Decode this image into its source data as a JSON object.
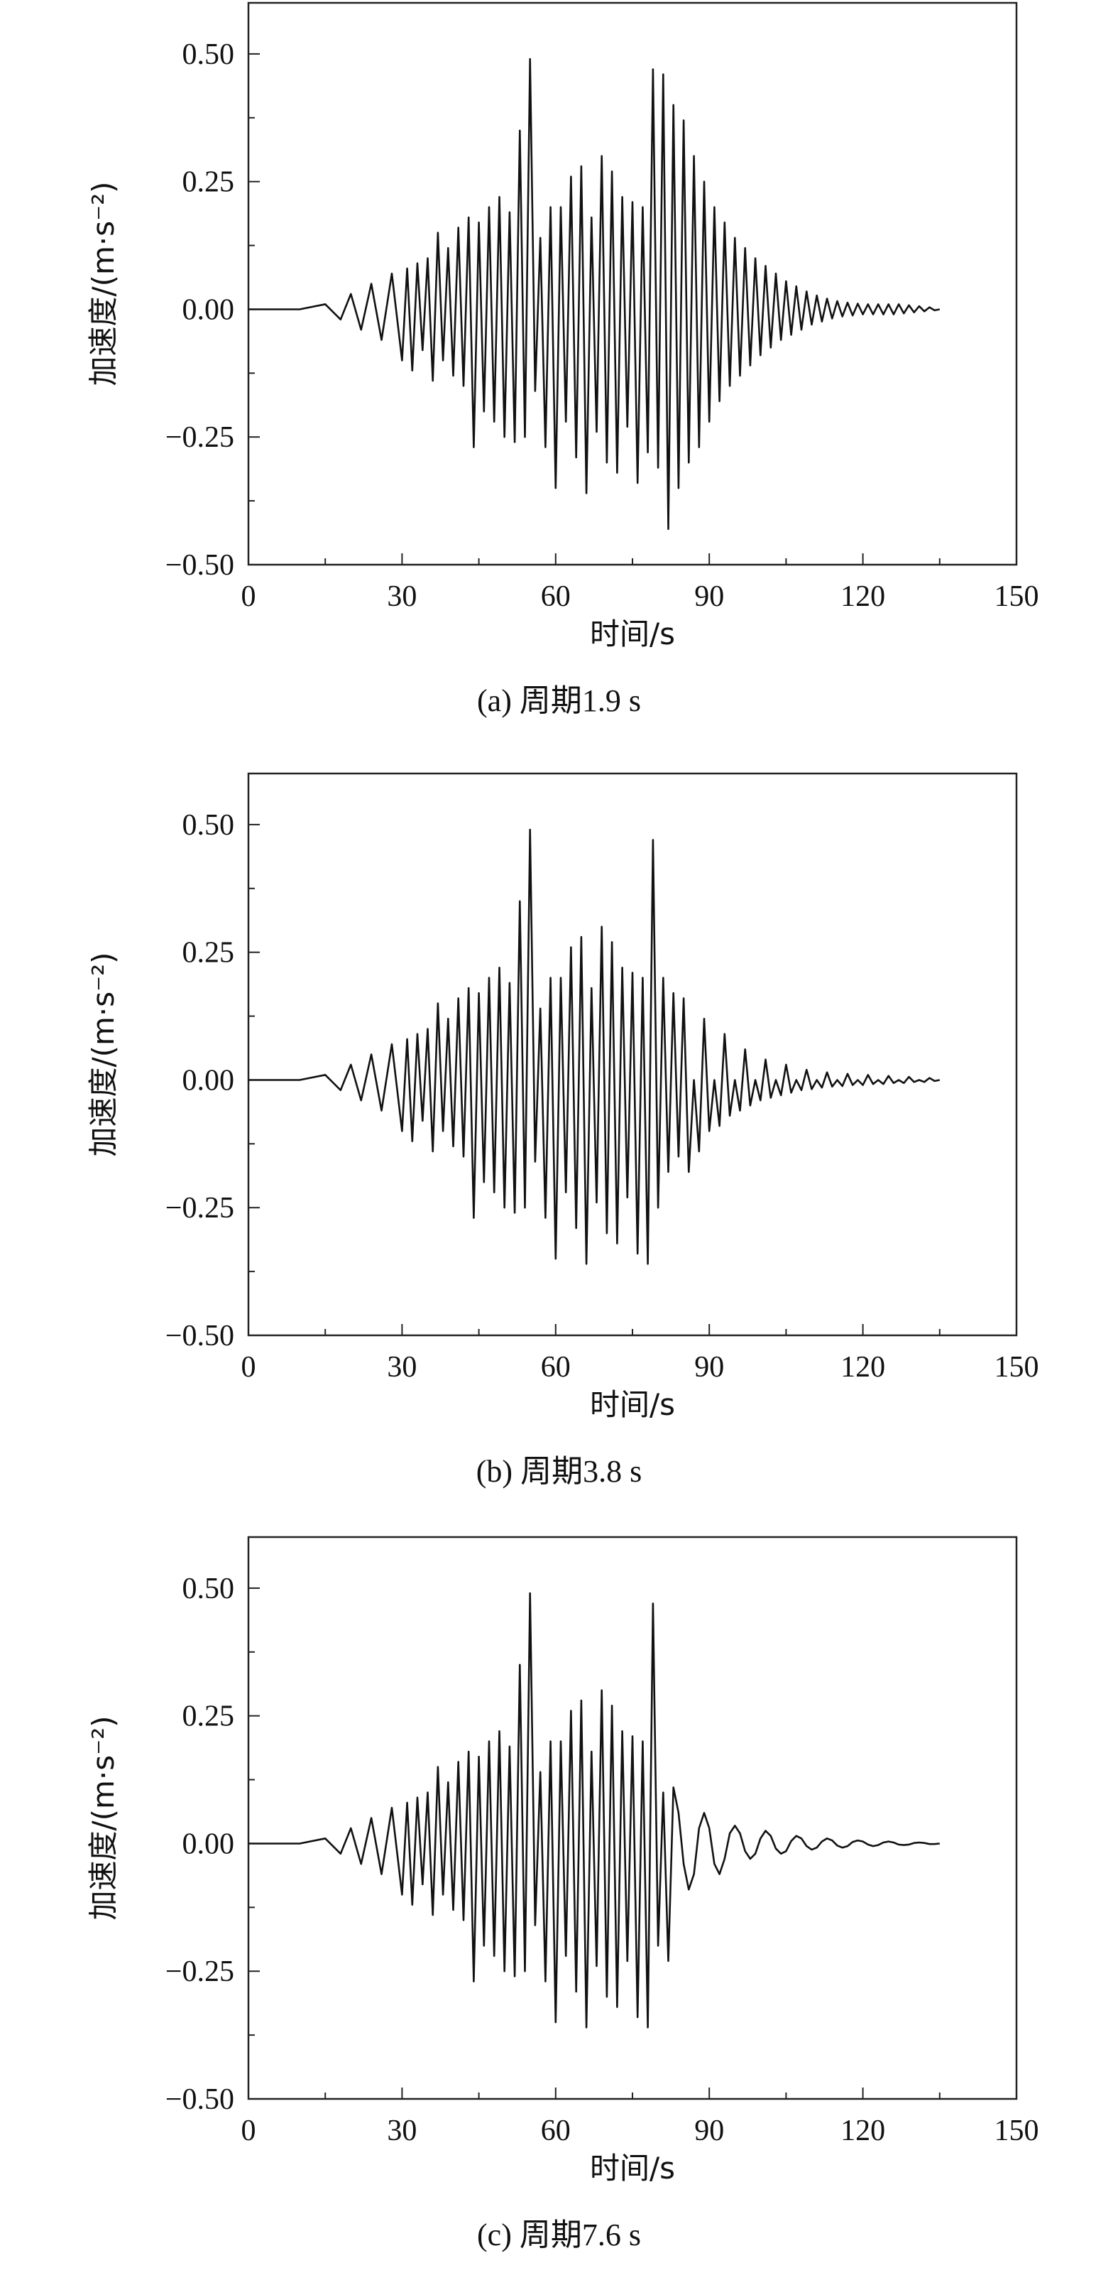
{
  "chart_data": [
    {
      "type": "line",
      "caption": "(a) 周期1.9 s",
      "xlabel": "时间/s",
      "ylabel": "加速度/(m·s⁻²)",
      "xlim": [
        0,
        150
      ],
      "ylim": [
        -0.5,
        0.6
      ],
      "xticks": [
        "0",
        "30",
        "60",
        "90",
        "120",
        "150"
      ],
      "yticks": [
        "-0.50",
        "-0.25",
        "0.00",
        "0.25",
        "0.50"
      ],
      "grid": false,
      "series": [
        {
          "x": [
            0,
            10,
            15,
            18,
            20,
            22,
            24,
            26,
            28,
            30,
            31,
            32,
            33,
            34,
            35,
            36,
            37,
            38,
            39,
            40,
            41,
            42,
            43,
            44,
            45,
            46,
            47,
            48,
            49,
            50,
            51,
            52,
            53,
            54,
            55,
            56,
            57,
            58,
            59,
            60,
            61,
            62,
            63,
            64,
            65,
            66,
            67,
            68,
            69,
            70,
            71,
            72,
            73,
            74,
            75,
            76,
            77,
            78,
            79,
            80,
            81,
            82,
            83,
            84,
            85,
            86,
            87,
            88,
            89,
            90,
            91,
            92,
            93,
            94,
            95,
            96,
            97,
            98,
            99,
            100,
            101,
            102,
            103,
            104,
            105,
            106,
            107,
            108,
            109,
            110,
            111,
            112,
            113,
            114,
            115,
            116,
            117,
            118,
            119,
            120,
            121,
            122,
            123,
            124,
            125,
            126,
            127,
            128,
            129,
            130,
            131,
            132,
            133,
            134,
            135
          ],
          "y": [
            0.0,
            0.0,
            0.01,
            -0.02,
            0.03,
            -0.04,
            0.05,
            -0.06,
            0.07,
            -0.1,
            0.08,
            -0.12,
            0.09,
            -0.08,
            0.1,
            -0.14,
            0.15,
            -0.1,
            0.12,
            -0.13,
            0.16,
            -0.15,
            0.18,
            -0.27,
            0.17,
            -0.2,
            0.2,
            -0.22,
            0.22,
            -0.25,
            0.19,
            -0.26,
            0.35,
            -0.25,
            0.49,
            -0.16,
            0.14,
            -0.27,
            0.2,
            -0.35,
            0.2,
            -0.22,
            0.26,
            -0.29,
            0.28,
            -0.36,
            0.18,
            -0.24,
            0.3,
            -0.3,
            0.27,
            -0.32,
            0.22,
            -0.23,
            0.21,
            -0.34,
            0.2,
            -0.28,
            0.47,
            -0.31,
            0.46,
            -0.43,
            0.4,
            -0.35,
            0.37,
            -0.3,
            0.3,
            -0.27,
            0.25,
            -0.22,
            0.2,
            -0.18,
            0.17,
            -0.15,
            0.14,
            -0.13,
            0.12,
            -0.11,
            0.1,
            -0.09,
            0.085,
            -0.075,
            0.07,
            -0.06,
            0.055,
            -0.05,
            0.045,
            -0.04,
            0.035,
            -0.03,
            0.027,
            -0.024,
            0.021,
            -0.018,
            0.016,
            -0.014,
            0.013,
            -0.012,
            0.011,
            -0.01,
            0.01,
            -0.01,
            0.01,
            -0.01,
            0.01,
            -0.01,
            0.01,
            -0.008,
            0.008,
            -0.006,
            0.006,
            -0.004,
            0.004,
            -0.002,
            0.0
          ]
        }
      ]
    },
    {
      "type": "line",
      "caption": "(b) 周期3.8 s",
      "xlabel": "时间/s",
      "ylabel": "加速度/(m·s⁻²)",
      "xlim": [
        0,
        150
      ],
      "ylim": [
        -0.5,
        0.6
      ],
      "xticks": [
        "0",
        "30",
        "60",
        "90",
        "120",
        "150"
      ],
      "yticks": [
        "-0.50",
        "-0.25",
        "0.00",
        "0.25",
        "0.50"
      ],
      "grid": false,
      "series": [
        {
          "x": [
            0,
            10,
            15,
            18,
            20,
            22,
            24,
            26,
            28,
            30,
            31,
            32,
            33,
            34,
            35,
            36,
            37,
            38,
            39,
            40,
            41,
            42,
            43,
            44,
            45,
            46,
            47,
            48,
            49,
            50,
            51,
            52,
            53,
            54,
            55,
            56,
            57,
            58,
            59,
            60,
            61,
            62,
            63,
            64,
            65,
            66,
            67,
            68,
            69,
            70,
            71,
            72,
            73,
            74,
            75,
            76,
            77,
            78,
            79,
            80,
            81,
            82,
            83,
            84,
            85,
            86,
            87,
            88,
            89,
            90,
            91,
            92,
            93,
            94,
            95,
            96,
            97,
            98,
            99,
            100,
            101,
            102,
            103,
            104,
            105,
            106,
            107,
            108,
            109,
            110,
            111,
            112,
            113,
            114,
            115,
            116,
            117,
            118,
            119,
            120,
            121,
            122,
            123,
            124,
            125,
            126,
            127,
            128,
            129,
            130,
            131,
            132,
            133,
            134,
            135
          ],
          "y": [
            0.0,
            0.0,
            0.01,
            -0.02,
            0.03,
            -0.04,
            0.05,
            -0.06,
            0.07,
            -0.1,
            0.08,
            -0.12,
            0.09,
            -0.08,
            0.1,
            -0.14,
            0.15,
            -0.1,
            0.12,
            -0.13,
            0.16,
            -0.15,
            0.18,
            -0.27,
            0.17,
            -0.2,
            0.2,
            -0.22,
            0.22,
            -0.25,
            0.19,
            -0.26,
            0.35,
            -0.25,
            0.49,
            -0.16,
            0.14,
            -0.27,
            0.2,
            -0.35,
            0.2,
            -0.22,
            0.26,
            -0.29,
            0.28,
            -0.36,
            0.18,
            -0.24,
            0.3,
            -0.3,
            0.27,
            -0.32,
            0.22,
            -0.23,
            0.21,
            -0.34,
            0.2,
            -0.36,
            0.47,
            -0.25,
            0.2,
            -0.18,
            0.17,
            -0.15,
            0.16,
            -0.18,
            0.0,
            -0.14,
            0.12,
            -0.1,
            0.0,
            -0.09,
            0.09,
            -0.07,
            0.0,
            -0.06,
            0.06,
            -0.05,
            0.0,
            -0.04,
            0.04,
            -0.035,
            0.0,
            -0.03,
            0.03,
            -0.025,
            0.0,
            -0.02,
            0.02,
            -0.018,
            0.0,
            -0.015,
            0.015,
            -0.013,
            0.0,
            -0.012,
            0.012,
            -0.01,
            0.0,
            -0.01,
            0.01,
            -0.008,
            0.0,
            -0.008,
            0.008,
            -0.006,
            0.0,
            -0.006,
            0.006,
            -0.004,
            0.0,
            -0.004,
            0.004,
            -0.002,
            0.0
          ]
        }
      ]
    },
    {
      "type": "line",
      "caption": "(c) 周期7.6 s",
      "xlabel": "时间/s",
      "ylabel": "加速度/(m·s⁻²)",
      "xlim": [
        0,
        150
      ],
      "ylim": [
        -0.5,
        0.6
      ],
      "xticks": [
        "0",
        "30",
        "60",
        "90",
        "120",
        "150"
      ],
      "yticks": [
        "-0.50",
        "-0.25",
        "0.00",
        "0.25",
        "0.50"
      ],
      "grid": false,
      "series": [
        {
          "x": [
            0,
            10,
            15,
            18,
            20,
            22,
            24,
            26,
            28,
            30,
            31,
            32,
            33,
            34,
            35,
            36,
            37,
            38,
            39,
            40,
            41,
            42,
            43,
            44,
            45,
            46,
            47,
            48,
            49,
            50,
            51,
            52,
            53,
            54,
            55,
            56,
            57,
            58,
            59,
            60,
            61,
            62,
            63,
            64,
            65,
            66,
            67,
            68,
            69,
            70,
            71,
            72,
            73,
            74,
            75,
            76,
            77,
            78,
            79,
            80,
            81,
            82,
            83,
            84,
            85,
            86,
            87,
            88,
            89,
            90,
            91,
            92,
            93,
            94,
            95,
            96,
            97,
            98,
            99,
            100,
            101,
            102,
            103,
            104,
            105,
            106,
            107,
            108,
            109,
            110,
            111,
            112,
            113,
            114,
            115,
            116,
            117,
            118,
            119,
            120,
            121,
            122,
            123,
            124,
            125,
            126,
            127,
            128,
            129,
            130,
            131,
            132,
            133,
            134,
            135
          ],
          "y": [
            0.0,
            0.0,
            0.01,
            -0.02,
            0.03,
            -0.04,
            0.05,
            -0.06,
            0.07,
            -0.1,
            0.08,
            -0.12,
            0.09,
            -0.08,
            0.1,
            -0.14,
            0.15,
            -0.1,
            0.12,
            -0.13,
            0.16,
            -0.15,
            0.18,
            -0.27,
            0.17,
            -0.2,
            0.2,
            -0.22,
            0.22,
            -0.25,
            0.19,
            -0.26,
            0.35,
            -0.25,
            0.49,
            -0.16,
            0.14,
            -0.27,
            0.2,
            -0.35,
            0.2,
            -0.22,
            0.26,
            -0.29,
            0.28,
            -0.36,
            0.18,
            -0.24,
            0.3,
            -0.3,
            0.27,
            -0.32,
            0.22,
            -0.23,
            0.21,
            -0.34,
            0.2,
            -0.36,
            0.47,
            -0.2,
            0.1,
            -0.23,
            0.11,
            0.06,
            -0.04,
            -0.09,
            -0.06,
            0.03,
            0.06,
            0.03,
            -0.04,
            -0.06,
            -0.03,
            0.02,
            0.035,
            0.02,
            -0.015,
            -0.03,
            -0.02,
            0.01,
            0.025,
            0.015,
            -0.01,
            -0.02,
            -0.015,
            0.005,
            0.015,
            0.01,
            -0.005,
            -0.012,
            -0.008,
            0.004,
            0.01,
            0.006,
            -0.004,
            -0.008,
            -0.005,
            0.003,
            0.006,
            0.004,
            -0.002,
            -0.005,
            -0.003,
            0.002,
            0.004,
            0.002,
            -0.002,
            -0.003,
            -0.002,
            0.001,
            0.002,
            0.001,
            -0.001,
            -0.001,
            0.0
          ]
        }
      ]
    }
  ]
}
